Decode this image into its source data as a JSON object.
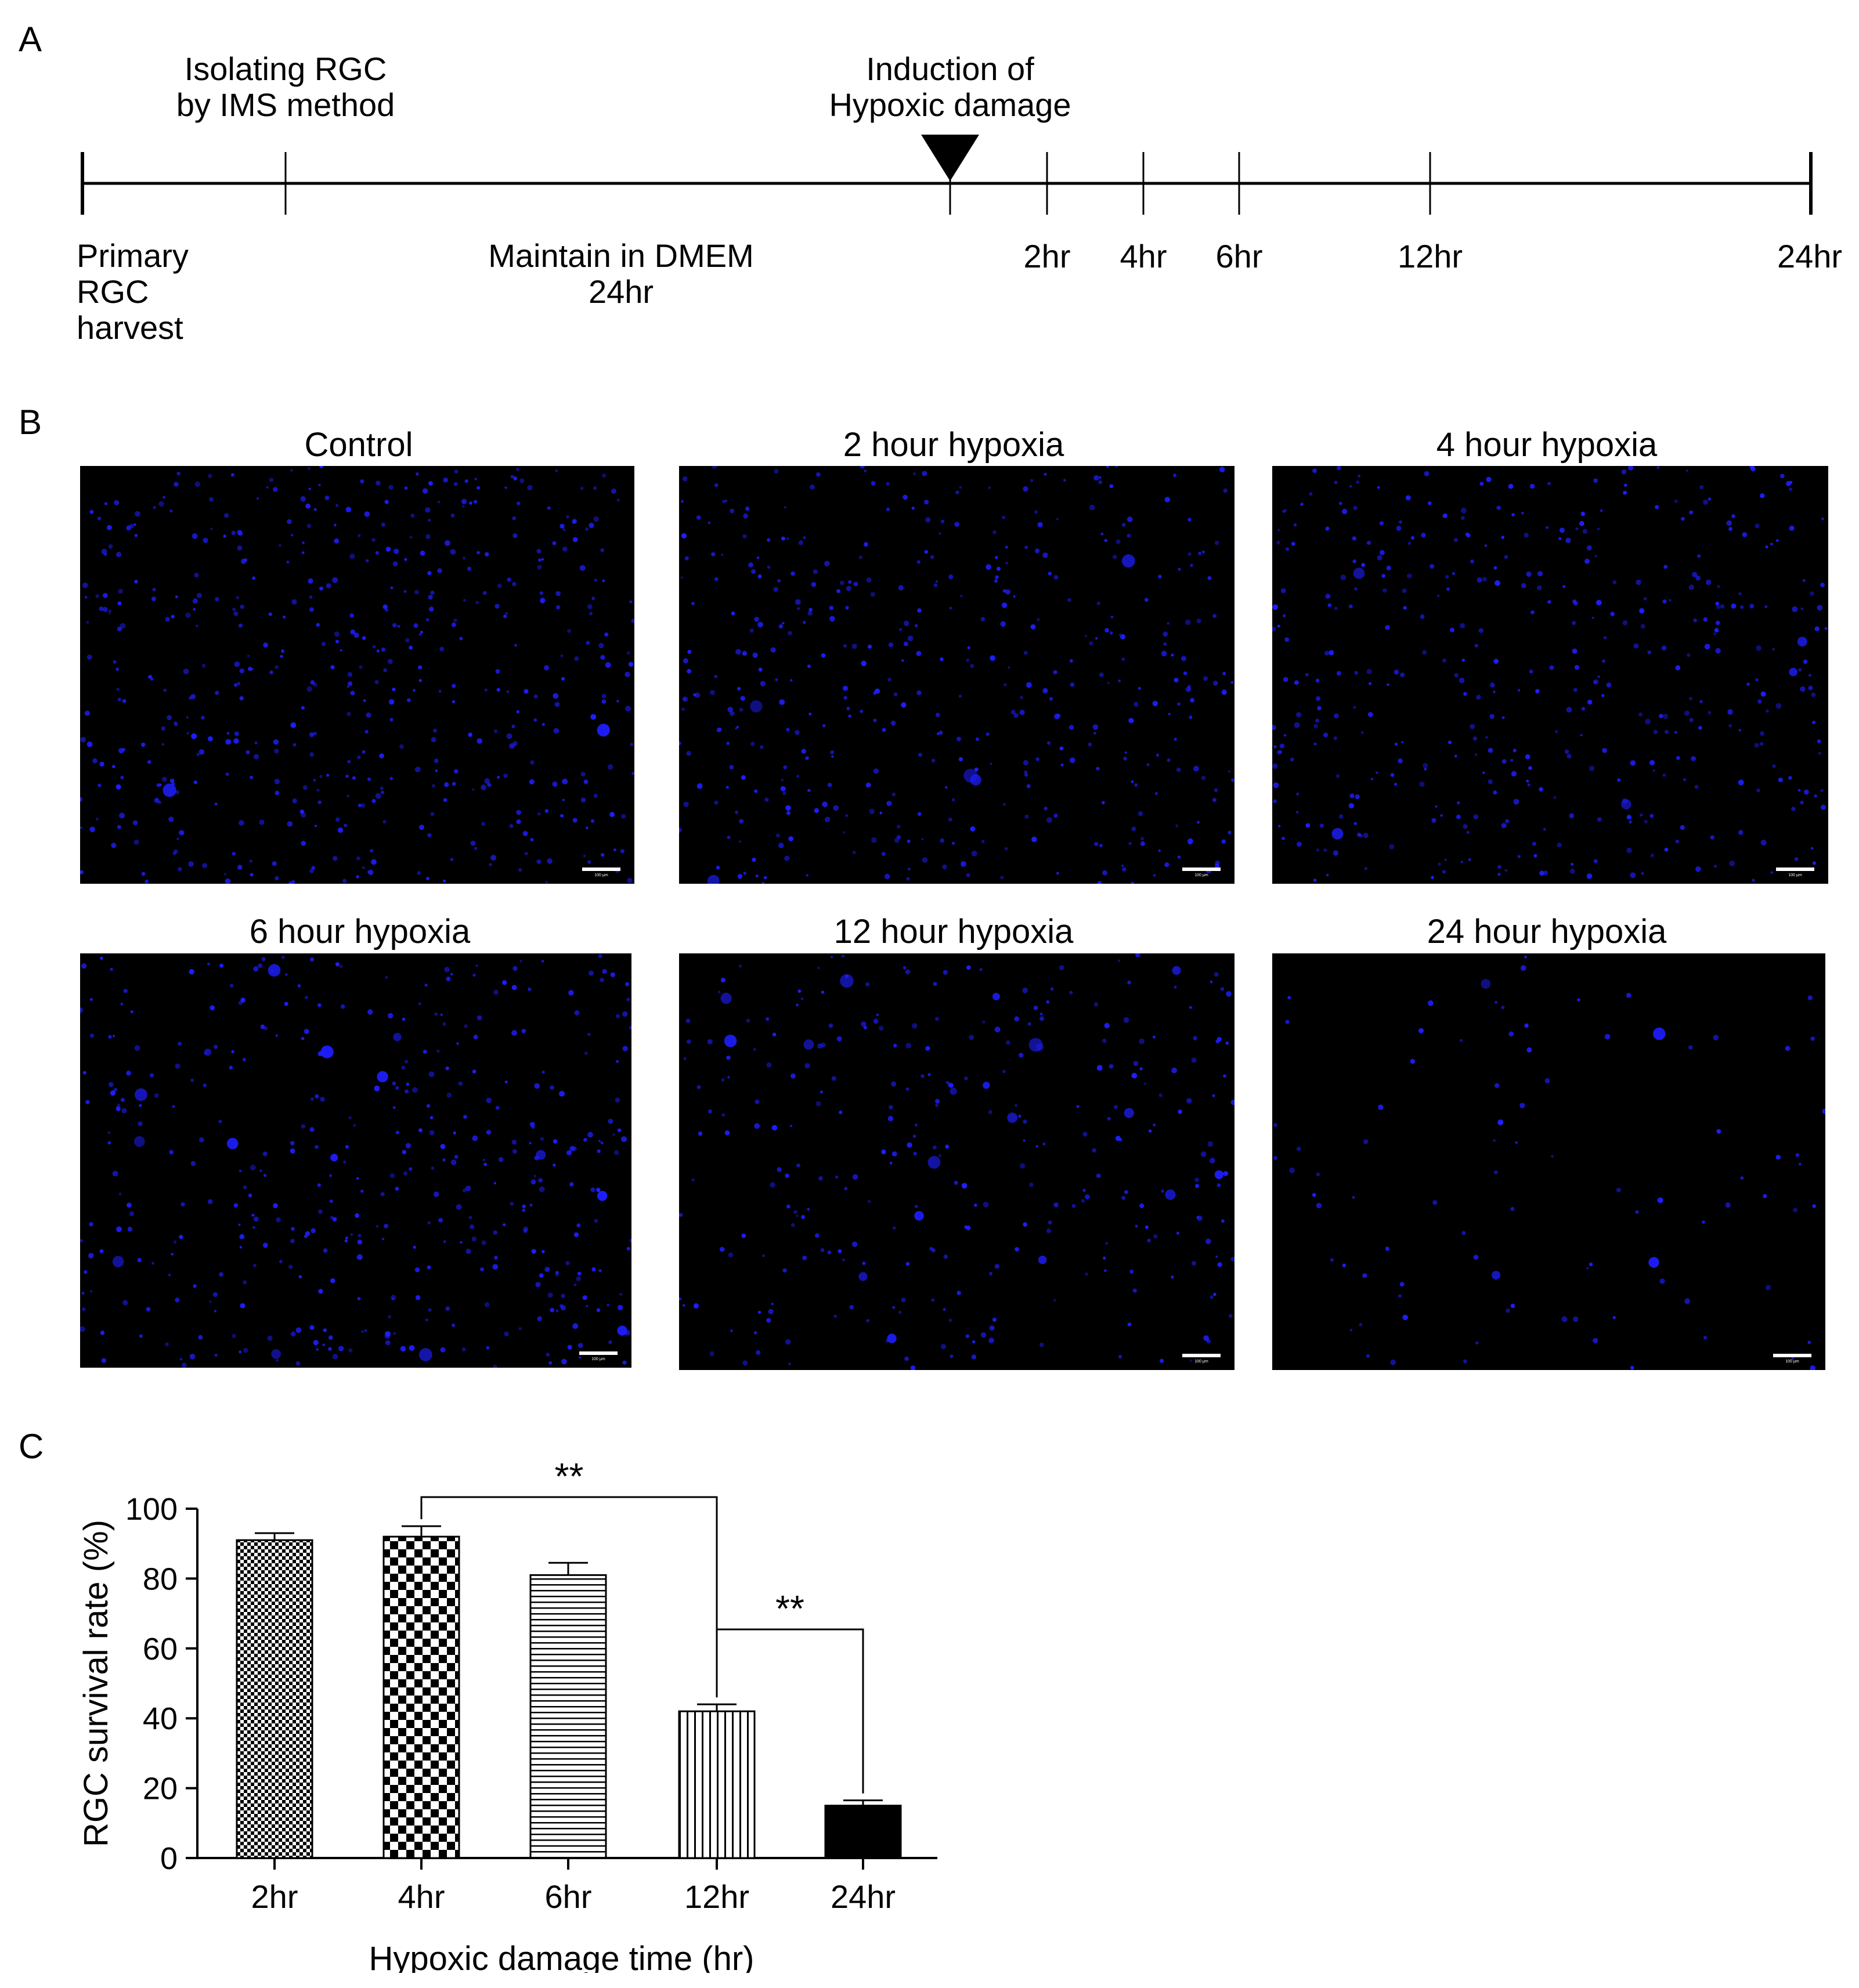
{
  "panels": {
    "a_letter": "A",
    "b_letter": "B",
    "c_letter": "C"
  },
  "timeline": {
    "isolating": [
      "Isolating RGC",
      "by IMS method"
    ],
    "induction": [
      "Induction of",
      "Hypoxic damage"
    ],
    "primary": [
      "Primary",
      "RGC",
      "harvest"
    ],
    "maintain": [
      "Maintain in DMEM",
      "24hr"
    ],
    "ticks": [
      "2hr",
      "4hr",
      "6hr",
      "12hr",
      "24hr"
    ]
  },
  "images": {
    "titles": [
      "Control",
      "2 hour hypoxia",
      "4 hour hypoxia",
      "6 hour hypoxia",
      "12 hour hypoxia",
      "24 hour hypoxia"
    ],
    "scale_label": "100 μm",
    "cell_color": "#1e1eff",
    "background_color": "#000000"
  },
  "chart_data": {
    "type": "bar",
    "categories": [
      "2hr",
      "4hr",
      "6hr",
      "12hr",
      "24hr"
    ],
    "values": [
      91,
      92,
      81,
      42,
      15
    ],
    "errors": [
      2,
      3,
      3.5,
      2,
      1.5
    ],
    "patterns": [
      "fine-check",
      "checkerboard",
      "horizontal-lines",
      "vertical-lines",
      "solid"
    ],
    "xlabel": "Hypoxic damage time (hr)",
    "ylabel": "RGC survival rate (%)",
    "ylim": [
      0,
      100
    ],
    "yticks": [
      0,
      20,
      40,
      60,
      80,
      100
    ],
    "significance": [
      {
        "from": "4hr",
        "to": "12hr",
        "label": "**"
      },
      {
        "from": "12hr",
        "to": "24hr",
        "label": "**"
      }
    ]
  }
}
